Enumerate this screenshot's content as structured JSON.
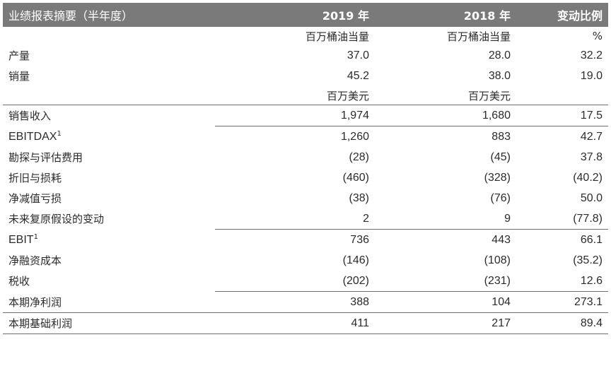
{
  "header": {
    "label": "业绩报表摘要（半年度）",
    "col_2019": "2019 年",
    "col_2018": "2018 年",
    "col_change": "变动比例"
  },
  "units_volume": {
    "c2019": "百万桶油当量",
    "c2018": "百万桶油当量",
    "change": "%"
  },
  "units_money": {
    "c2019": "百万美元",
    "c2018": "百万美元",
    "change": ""
  },
  "rows": {
    "production": {
      "label": "产量",
      "v2019": "37.0",
      "v2018": "28.0",
      "change": "32.2"
    },
    "sales_volume": {
      "label": "销量",
      "v2019": "45.2",
      "v2018": "38.0",
      "change": "19.0"
    },
    "sales_revenue": {
      "label": "销售收入",
      "v2019": "1,974",
      "v2018": "1,680",
      "change": "17.5"
    },
    "ebitdax": {
      "label": "EBITDAX",
      "sup": "1",
      "v2019": "1,260",
      "v2018": "883",
      "change": "42.7"
    },
    "exploration": {
      "label": "勘探与评估费用",
      "v2019": "(28)",
      "v2018": "(45)",
      "change": "37.8"
    },
    "depreciation": {
      "label": "折旧与损耗",
      "v2019": "(460)",
      "v2018": "(328)",
      "change": "(40.2)"
    },
    "impairment": {
      "label": "净减值亏损",
      "v2019": "(38)",
      "v2018": "(76)",
      "change": "50.0"
    },
    "restoration": {
      "label": "未来复原假设的变动",
      "v2019": "2",
      "v2018": "9",
      "change": "(77.8)"
    },
    "ebit": {
      "label": "EBIT",
      "sup": "1",
      "v2019": "736",
      "v2018": "443",
      "change": "66.1"
    },
    "finance": {
      "label": "净融资成本",
      "v2019": "(146)",
      "v2018": "(108)",
      "change": "(35.2)"
    },
    "tax": {
      "label": "税收",
      "v2019": "(202)",
      "v2018": "(231)",
      "change": "12.6"
    },
    "net_profit": {
      "label": "本期净利润",
      "v2019": "388",
      "v2018": "104",
      "change": "273.1"
    },
    "underlying_profit": {
      "label": "本期基础利润",
      "v2019": "411",
      "v2018": "217",
      "change": "89.4"
    }
  }
}
